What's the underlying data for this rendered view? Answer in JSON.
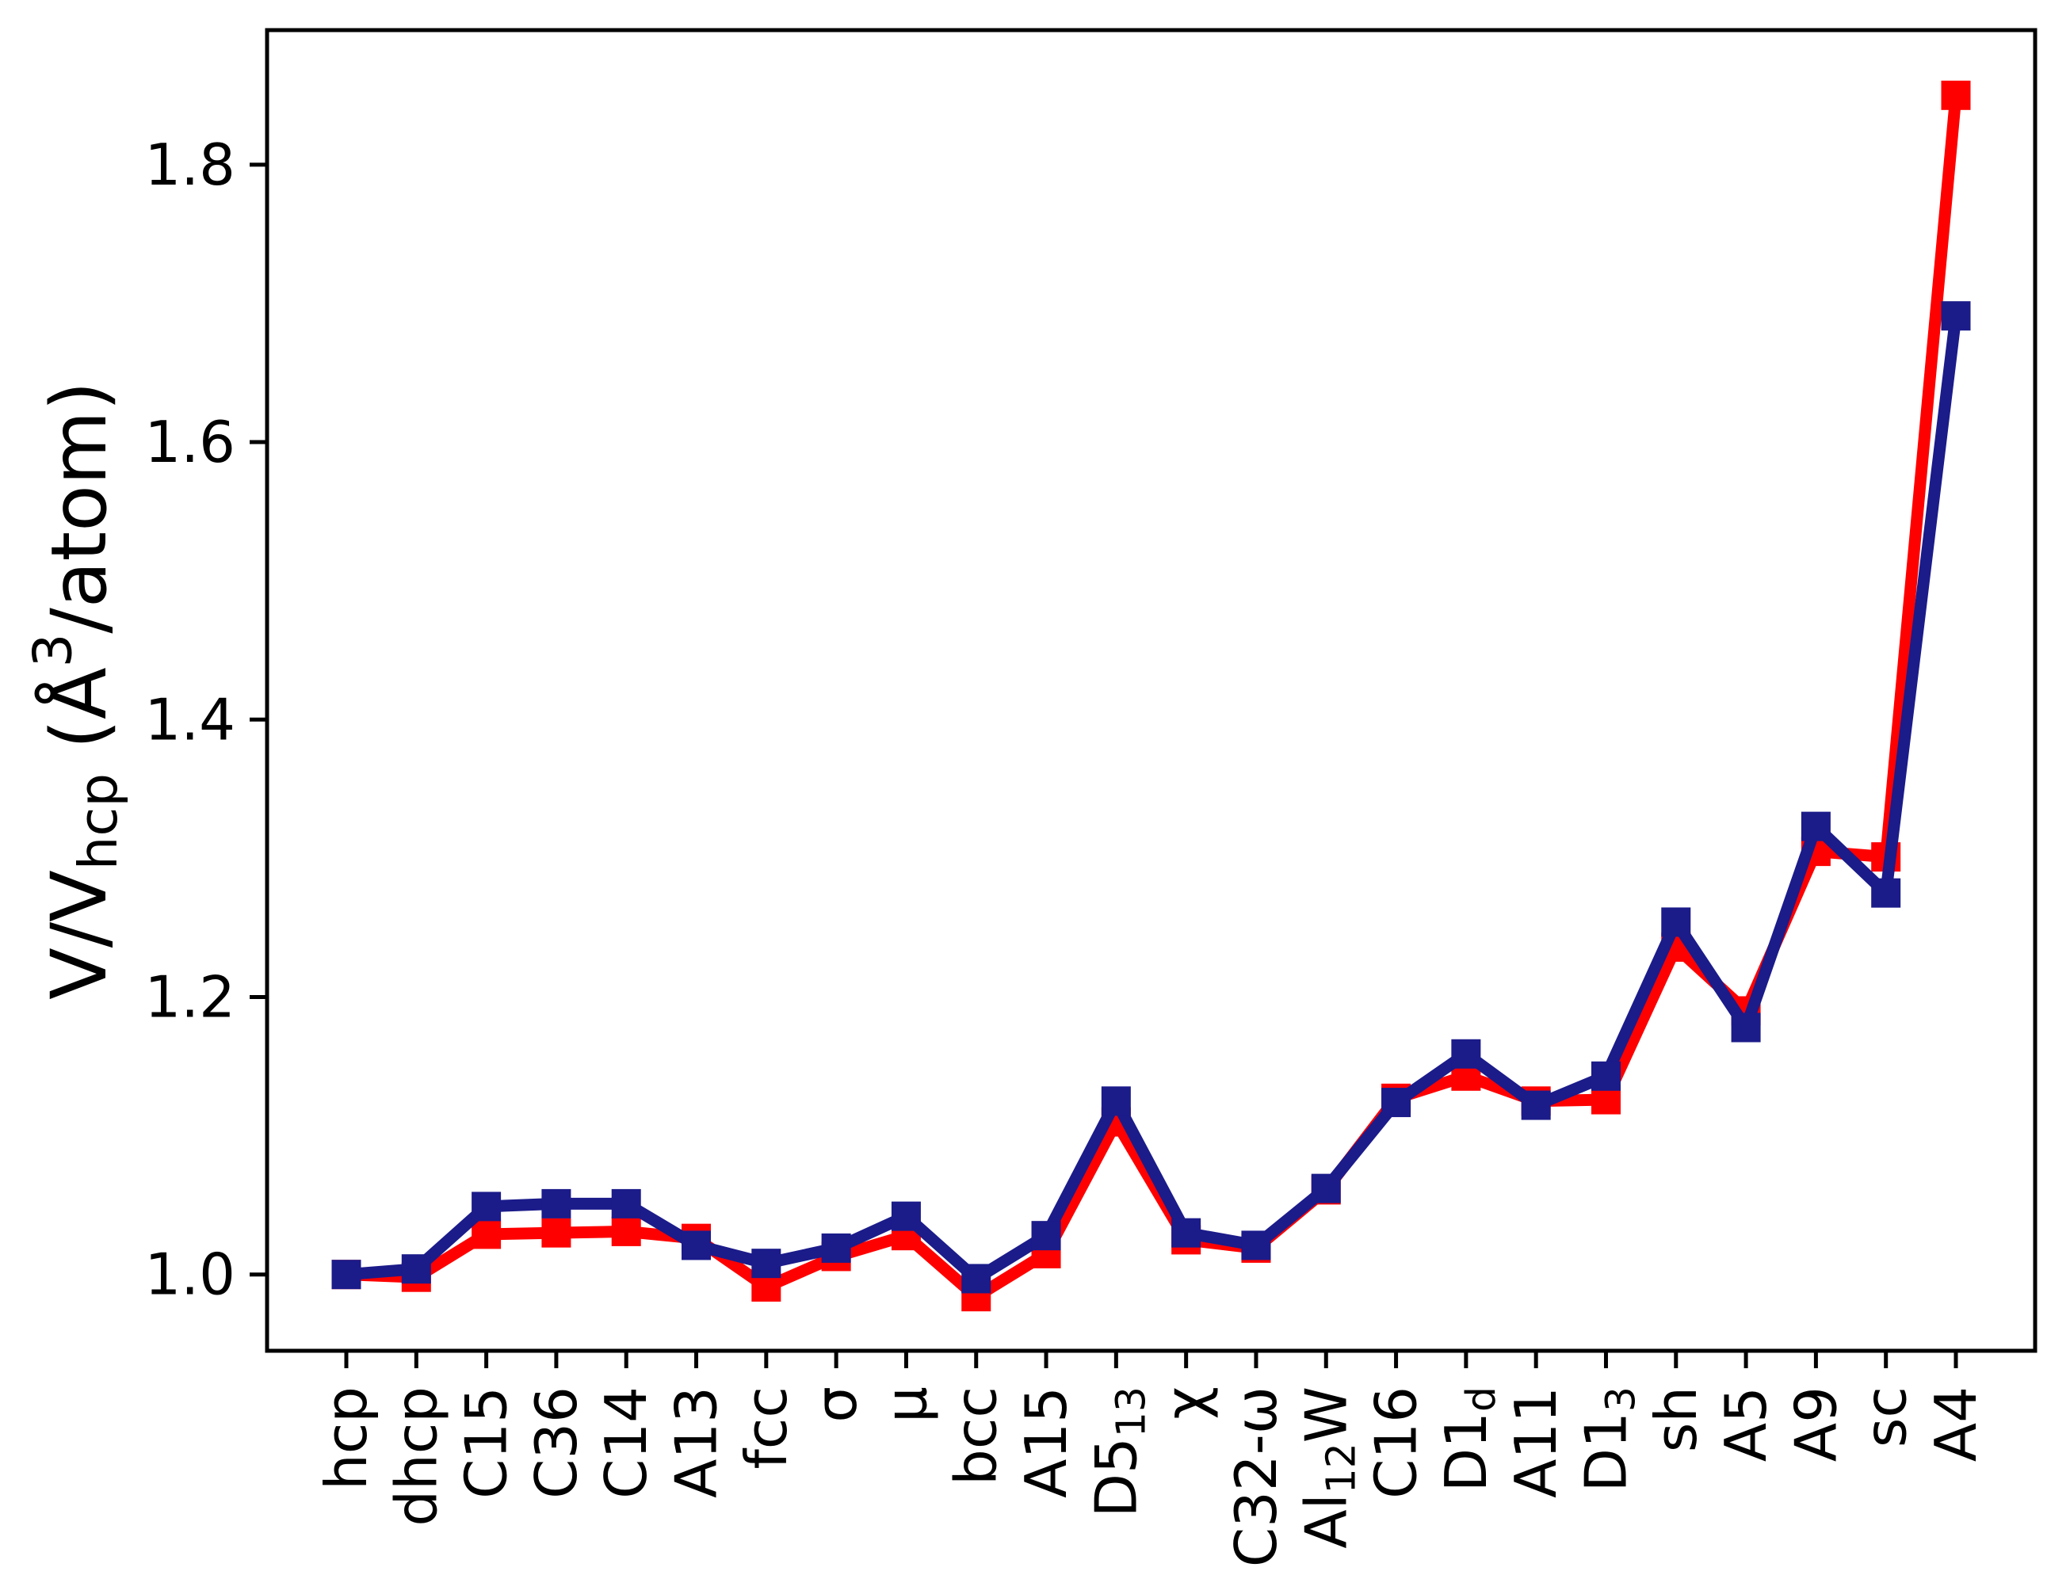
{
  "chart_data": {
    "type": "line",
    "title": "",
    "xlabel": "",
    "ylabel": "V/V_hcp (Å³/atom)",
    "ylabel_rich": [
      {
        "t": "V/V"
      },
      {
        "t": "hcp",
        "sub": true
      },
      {
        "t": " (Å"
      },
      {
        "t": "3",
        "sup": true
      },
      {
        "t": "/atom)"
      }
    ],
    "categories": [
      "hcp",
      "dhcp",
      "C15",
      "C36",
      "C14",
      "A13",
      "fcc",
      "σ",
      "μ",
      "bcc",
      "A15",
      "D5₁₃",
      "χ",
      "C32-ω",
      "Al₁₂W",
      "C16",
      "D1_d",
      "A11",
      "D1₃",
      "sh",
      "A5",
      "A9",
      "sc",
      "A4"
    ],
    "categories_rich": [
      [
        {
          "t": "hcp"
        }
      ],
      [
        {
          "t": "dhcp"
        }
      ],
      [
        {
          "t": "C15"
        }
      ],
      [
        {
          "t": "C36"
        }
      ],
      [
        {
          "t": "C14"
        }
      ],
      [
        {
          "t": "A13"
        }
      ],
      [
        {
          "t": "fcc"
        }
      ],
      [
        {
          "t": "σ"
        }
      ],
      [
        {
          "t": "μ"
        }
      ],
      [
        {
          "t": "bcc"
        }
      ],
      [
        {
          "t": "A15"
        }
      ],
      [
        {
          "t": "D5"
        },
        {
          "t": "13",
          "sub": true
        }
      ],
      [
        {
          "t": "χ"
        }
      ],
      [
        {
          "t": "C32-ω"
        }
      ],
      [
        {
          "t": "Al"
        },
        {
          "t": "12",
          "sub": true
        },
        {
          "t": "W"
        }
      ],
      [
        {
          "t": "C16"
        }
      ],
      [
        {
          "t": "D1"
        },
        {
          "t": "d",
          "sub": true
        }
      ],
      [
        {
          "t": "A11"
        }
      ],
      [
        {
          "t": "D1"
        },
        {
          "t": "3",
          "sub": true
        }
      ],
      [
        {
          "t": "sh"
        }
      ],
      [
        {
          "t": "A5"
        }
      ],
      [
        {
          "t": "A9"
        }
      ],
      [
        {
          "t": "sc"
        }
      ],
      [
        {
          "t": "A4"
        }
      ]
    ],
    "series": [
      {
        "name": "red-series",
        "color": "#ff0000",
        "values": [
          1.0,
          0.998,
          1.029,
          1.03,
          1.031,
          1.026,
          0.991,
          1.013,
          1.028,
          0.984,
          1.015,
          1.11,
          1.025,
          1.019,
          1.061,
          1.127,
          1.143,
          1.125,
          1.126,
          1.236,
          1.19,
          1.305,
          1.301,
          1.85
        ]
      },
      {
        "name": "navy-series",
        "color": "#1b1b8a",
        "values": [
          1.0,
          1.004,
          1.049,
          1.051,
          1.051,
          1.021,
          1.008,
          1.019,
          1.042,
          0.997,
          1.028,
          1.125,
          1.03,
          1.021,
          1.062,
          1.124,
          1.159,
          1.122,
          1.143,
          1.254,
          1.178,
          1.323,
          1.275,
          1.691
        ]
      }
    ],
    "yticks": [
      1.0,
      1.2,
      1.4,
      1.6,
      1.8
    ],
    "yticklabels": [
      "1.0",
      "1.2",
      "1.4",
      "1.6",
      "1.8"
    ],
    "ylim": [
      0.945,
      1.897
    ],
    "grid": false,
    "legend": null,
    "marker": "square",
    "axis_color": "#000000"
  }
}
